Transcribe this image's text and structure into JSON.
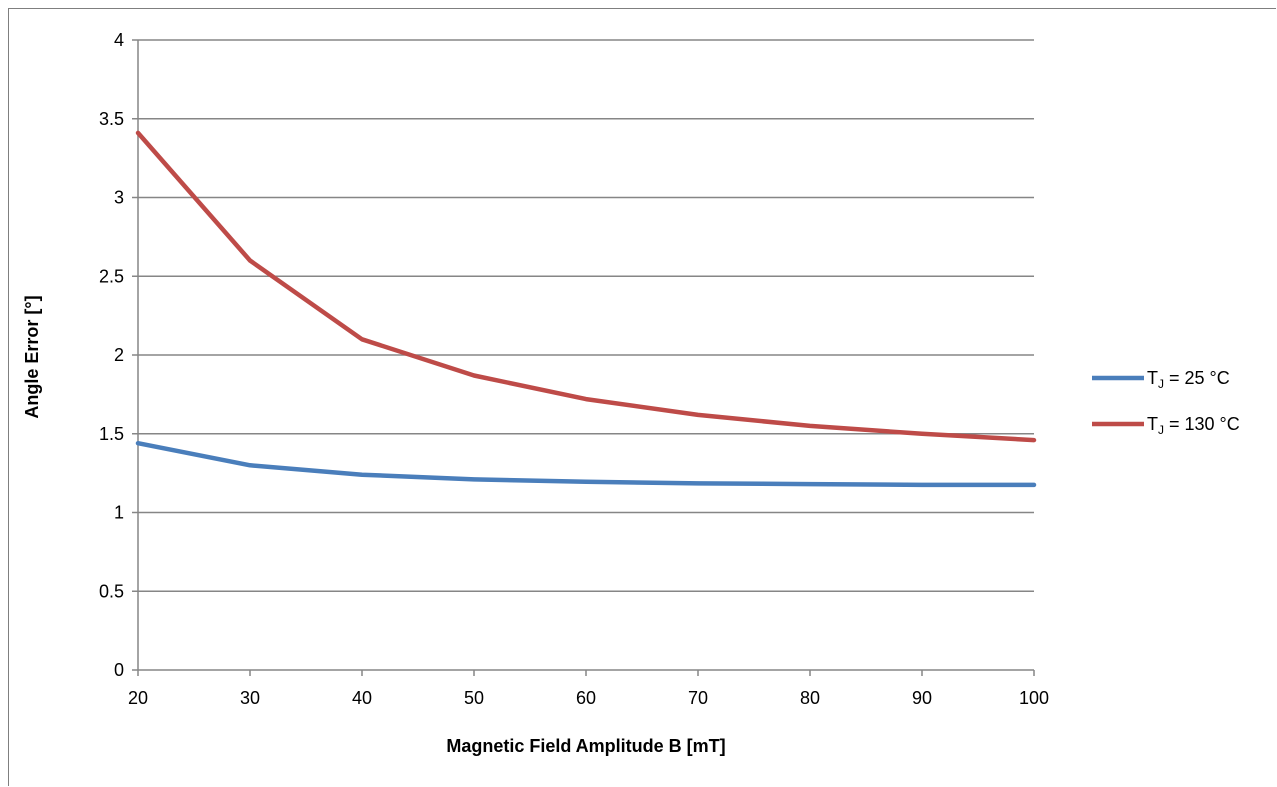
{
  "chart_data": {
    "type": "line",
    "title": "",
    "xlabel": "Magnetic Field Amplitude B [mT]",
    "ylabel": "Angle Error [°]",
    "xlim": [
      20,
      100
    ],
    "ylim": [
      0,
      4
    ],
    "x_ticks": [
      20,
      30,
      40,
      50,
      60,
      70,
      80,
      90,
      100
    ],
    "y_ticks": [
      0,
      0.5,
      1,
      1.5,
      2,
      2.5,
      3,
      3.5,
      4
    ],
    "grid": "horizontal",
    "legend_position": "right",
    "x": [
      20,
      30,
      40,
      50,
      60,
      70,
      80,
      90,
      100
    ],
    "series": [
      {
        "name": "TJ = 25 °C",
        "label_main": "T",
        "label_sub": "J",
        "label_rest": " = 25 °C",
        "color": "#4a7ebb",
        "values": [
          1.44,
          1.3,
          1.24,
          1.21,
          1.195,
          1.185,
          1.18,
          1.175,
          1.175
        ]
      },
      {
        "name": "TJ = 130 °C",
        "label_main": "T",
        "label_sub": "J",
        "label_rest": " = 130 °C",
        "color": "#be4b48",
        "values": [
          3.41,
          2.6,
          2.1,
          1.87,
          1.72,
          1.62,
          1.55,
          1.5,
          1.46
        ]
      }
    ]
  },
  "colors": {
    "grid": "#868686",
    "axis": "#868686",
    "frame": "#7f7f7f"
  }
}
